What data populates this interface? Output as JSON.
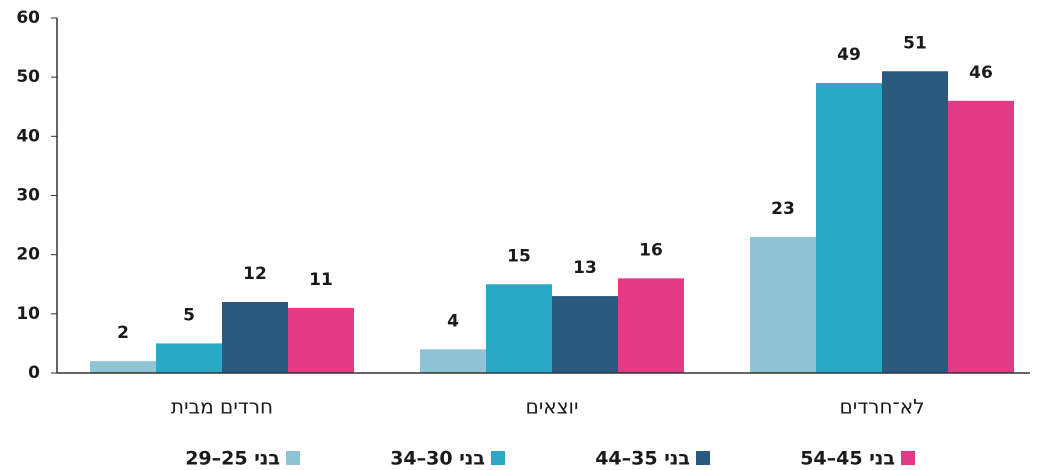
{
  "chart_data": {
    "type": "bar",
    "categories": [
      "חרדים מבית",
      "יוצאים",
      "לא־חרדים"
    ],
    "series": [
      {
        "name": "בני 25–29",
        "color": "#8fc3d6",
        "values": [
          2,
          4,
          23
        ]
      },
      {
        "name": "בני 30–34",
        "color": "#29a9c5",
        "values": [
          5,
          15,
          49
        ]
      },
      {
        "name": "בני 35–44",
        "color": "#2a5a7e",
        "values": [
          12,
          13,
          51
        ]
      },
      {
        "name": "בני 45–54",
        "color": "#e23a84",
        "values": [
          11,
          16,
          46
        ]
      }
    ],
    "ylim": [
      0,
      60
    ],
    "yticks": [
      0,
      10,
      20,
      30,
      40,
      50,
      60
    ],
    "grid": false,
    "legend": "bottom"
  }
}
